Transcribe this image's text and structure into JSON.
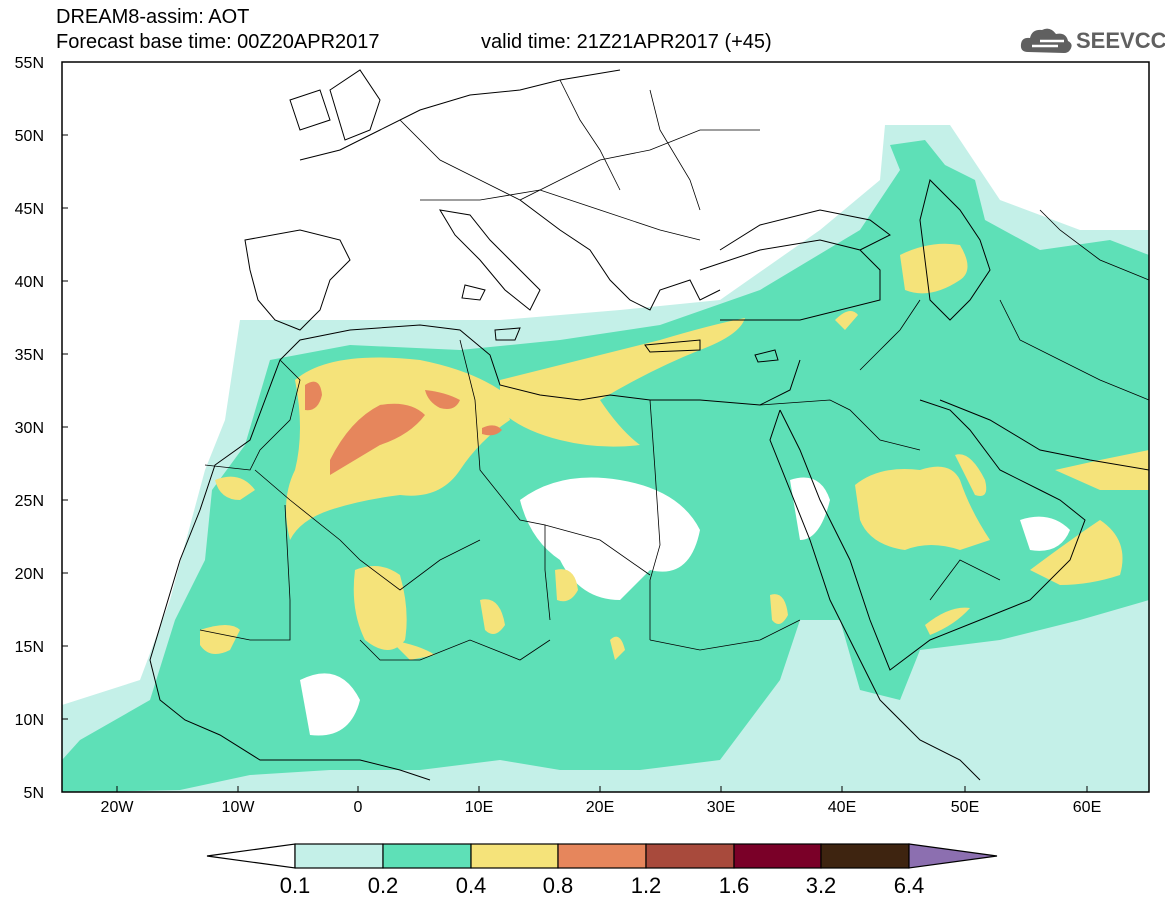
{
  "header": {
    "model": "DREAM8-assim: AOT",
    "base_time": "Forecast base time: 00Z20APR2017",
    "valid_time": "valid time: 21Z21APR2017 (+45)"
  },
  "logo": {
    "text": "SEEVCCC",
    "icon": "cloud-icon"
  },
  "map": {
    "region": "North Africa, Mediterranean, Middle East",
    "lat_labels": [
      "55N",
      "50N",
      "45N",
      "40N",
      "35N",
      "30N",
      "25N",
      "20N",
      "15N",
      "10N",
      "5N"
    ],
    "lon_labels": [
      "20W",
      "10W",
      "0",
      "10E",
      "20E",
      "30E",
      "40E",
      "50E",
      "60E"
    ],
    "lon_range": [
      -25,
      65
    ],
    "lat_range": [
      5,
      55
    ]
  },
  "colorbar": {
    "labels": [
      "0.1",
      "0.2",
      "0.4",
      "0.8",
      "1.2",
      "1.6",
      "3.2",
      "6.4"
    ],
    "colors": [
      "#ffffff",
      "#c4f0e8",
      "#5ee0b7",
      "#f5e37a",
      "#e6865c",
      "#a84a3c",
      "#7a0028",
      "#3e2410",
      "#8c6fb0"
    ]
  }
}
